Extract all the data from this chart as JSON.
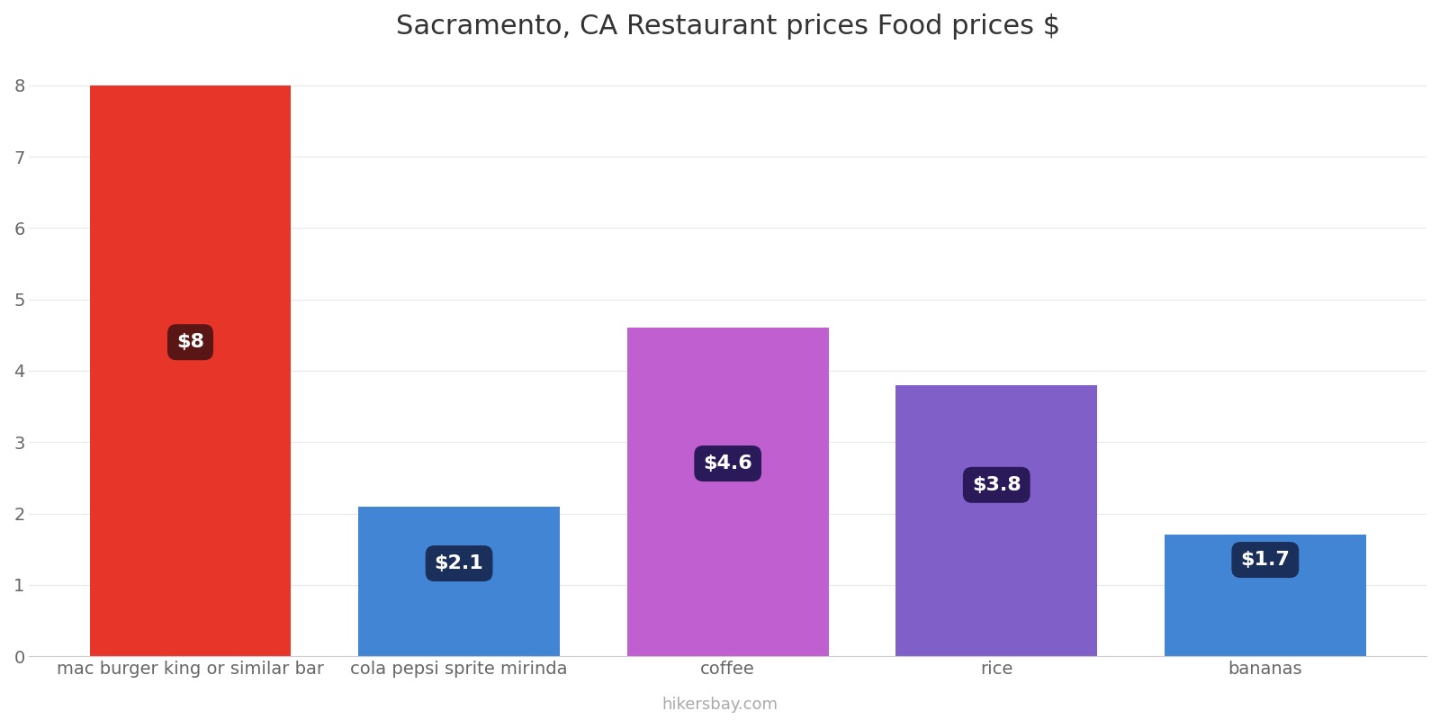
{
  "title": "Sacramento, CA Restaurant prices Food prices $",
  "categories": [
    "mac burger king or similar bar",
    "cola pepsi sprite mirinda",
    "coffee",
    "rice",
    "bananas"
  ],
  "values": [
    8.0,
    2.1,
    4.6,
    3.8,
    1.7
  ],
  "bar_colors": [
    "#e8352a",
    "#4285d4",
    "#c060d0",
    "#8060c8",
    "#4285d4"
  ],
  "label_texts": [
    "$8",
    "$2.1",
    "$4.6",
    "$3.8",
    "$1.7"
  ],
  "label_bg_colors": [
    "#5a1515",
    "#1a2f5a",
    "#2a1a5a",
    "#2a1a5a",
    "#1a2f5a"
  ],
  "ylim": [
    0,
    8.4
  ],
  "yticks": [
    0,
    1,
    2,
    3,
    4,
    5,
    6,
    7,
    8
  ],
  "title_fontsize": 22,
  "label_fontsize": 16,
  "tick_fontsize": 14,
  "watermark": "hikersbay.com",
  "background_color": "#ffffff",
  "label_y_abs": [
    4.4,
    1.3,
    2.7,
    2.4,
    1.35
  ]
}
